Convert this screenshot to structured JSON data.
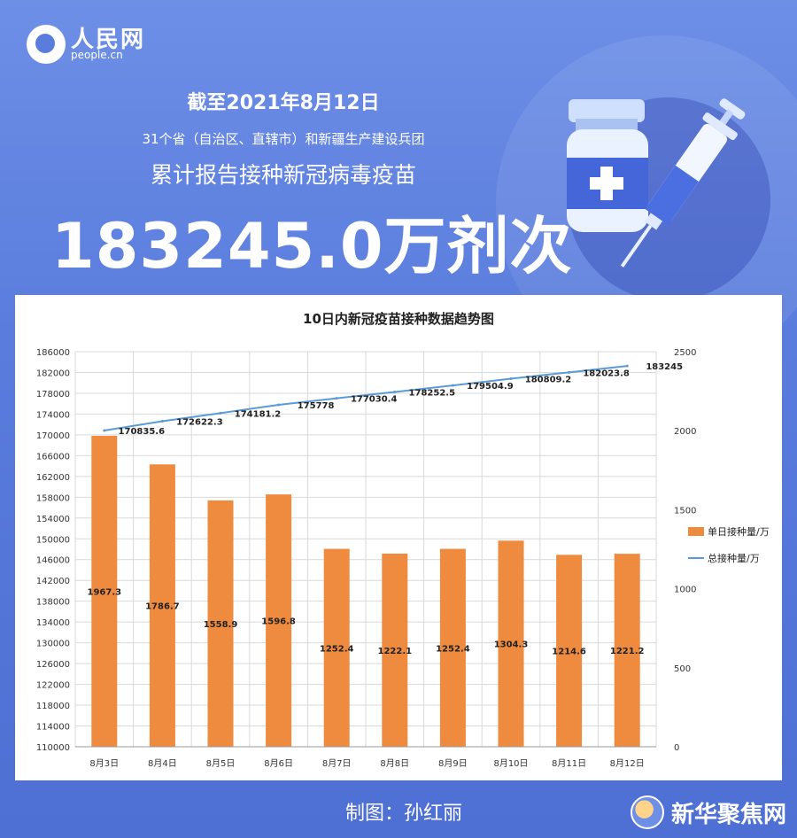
{
  "brand": {
    "name_cn": "人民网",
    "domain": "people.cn"
  },
  "headline": {
    "date": "截至2021年8月12日",
    "subtitle": "31个省（自治区、直辖市）和新疆生产建设兵团",
    "subtitle2": "累计报告接种新冠病毒疫苗",
    "big_number": "183245.0万剂次"
  },
  "footer": {
    "credit": "制图：孙红丽",
    "brand": "新华聚焦网"
  },
  "colors": {
    "bar": "#ee8b3f",
    "line": "#5b9bd5",
    "background": "#5a7cdd"
  },
  "icons": [
    "vaccine-bottle-icon",
    "syringe-icon",
    "people-cn-logo-icon",
    "brand-icon"
  ],
  "chart_data": {
    "type": "bar",
    "title": "10日内新冠疫苗接种数据趋势图",
    "categories": [
      "8月3日",
      "8月4日",
      "8月5日",
      "8月6日",
      "8月7日",
      "8月8日",
      "8月9日",
      "8月10日",
      "8月11日",
      "8月12日"
    ],
    "series": [
      {
        "name": "单日接种量/万",
        "type": "bar",
        "axis": "right",
        "values": [
          1967.3,
          1786.7,
          1558.9,
          1596.8,
          1252.4,
          1222.1,
          1252.4,
          1304.3,
          1214.6,
          1221.2
        ]
      },
      {
        "name": "总接种量/万",
        "type": "line",
        "axis": "left",
        "values": [
          170835.6,
          172622.3,
          174181.2,
          175778,
          177030.4,
          178252.5,
          179504.9,
          180809.2,
          182023.8,
          183245
        ]
      }
    ],
    "y_left": {
      "min": 110000,
      "max": 186000,
      "step": 4000
    },
    "y_right": {
      "min": 0,
      "max": 2500,
      "step": 500
    },
    "grid": true,
    "legend_position": "right"
  }
}
